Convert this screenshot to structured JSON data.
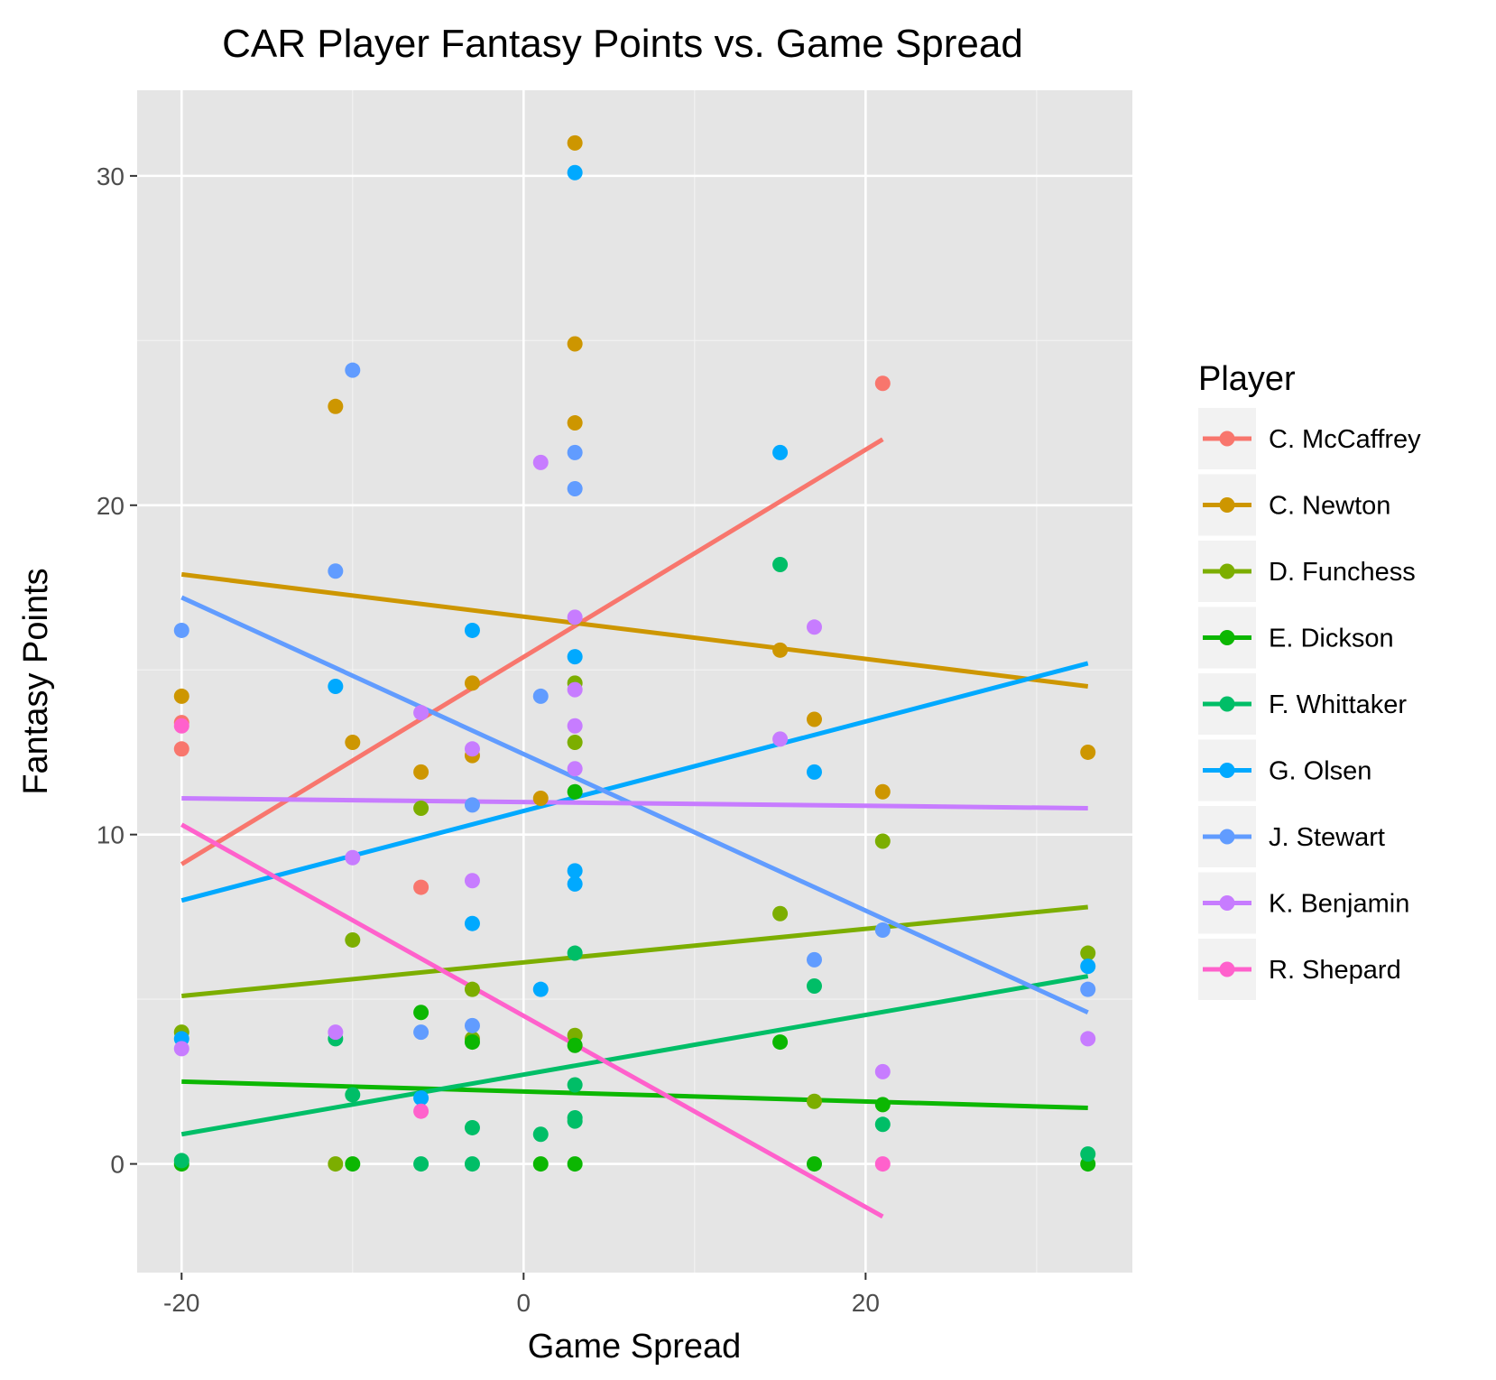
{
  "chart_data": {
    "type": "scatter",
    "title": "CAR Player Fantasy Points vs. Game Spread",
    "xlabel": "Game Spread",
    "ylabel": "Fantasy Points",
    "xlim": [
      -22.6,
      35.6
    ],
    "ylim": [
      -3.3,
      32.6
    ],
    "x_ticks": [
      -20,
      0,
      20
    ],
    "y_ticks": [
      0,
      10,
      20,
      30
    ],
    "x_minor": [
      -10,
      10,
      30
    ],
    "y_minor": [
      5,
      15,
      25
    ],
    "grid": true,
    "legend_title": "Player",
    "legend_position": "right",
    "background": "#e5e5e5",
    "series": [
      {
        "name": "C. McCaffrey",
        "color": "#f8766d",
        "points": [
          [
            -20,
            12.6
          ],
          [
            -20,
            13.4
          ],
          [
            -6,
            8.4
          ],
          [
            21,
            23.7
          ]
        ],
        "trend": [
          [
            -20,
            9.1
          ],
          [
            21,
            22.0
          ]
        ]
      },
      {
        "name": "C. Newton",
        "color": "#cd9600",
        "points": [
          [
            -20,
            14.2
          ],
          [
            -11,
            23.0
          ],
          [
            -10,
            12.8
          ],
          [
            -6,
            11.9
          ],
          [
            -3,
            14.6
          ],
          [
            -3,
            12.4
          ],
          [
            1,
            11.1
          ],
          [
            3,
            31.0
          ],
          [
            3,
            24.9
          ],
          [
            3,
            22.5
          ],
          [
            15,
            15.6
          ],
          [
            17,
            13.5
          ],
          [
            21,
            11.3
          ],
          [
            33,
            12.5
          ]
        ],
        "trend": [
          [
            -20,
            17.9
          ],
          [
            33,
            14.5
          ]
        ]
      },
      {
        "name": "D. Funchess",
        "color": "#7cae00",
        "points": [
          [
            -20,
            4.0
          ],
          [
            -11,
            0.0
          ],
          [
            -10,
            6.8
          ],
          [
            -6,
            10.8
          ],
          [
            -3,
            5.3
          ],
          [
            -3,
            3.8
          ],
          [
            3,
            14.6
          ],
          [
            3,
            12.8
          ],
          [
            3,
            3.9
          ],
          [
            15,
            7.6
          ],
          [
            17,
            1.9
          ],
          [
            21,
            9.8
          ],
          [
            33,
            6.4
          ]
        ],
        "trend": [
          [
            -20,
            5.1
          ],
          [
            33,
            7.8
          ]
        ]
      },
      {
        "name": "E. Dickson",
        "color": "#0cb702",
        "points": [
          [
            -20,
            0.0
          ],
          [
            -10,
            0.0
          ],
          [
            -6,
            4.6
          ],
          [
            -3,
            3.7
          ],
          [
            1,
            0.0
          ],
          [
            3,
            11.3
          ],
          [
            3,
            3.6
          ],
          [
            3,
            0.0
          ],
          [
            15,
            3.7
          ],
          [
            17,
            0.0
          ],
          [
            21,
            1.8
          ],
          [
            33,
            0.0
          ]
        ],
        "trend": [
          [
            -20,
            2.5
          ],
          [
            33,
            1.7
          ]
        ]
      },
      {
        "name": "F. Whittaker",
        "color": "#00be67",
        "points": [
          [
            -20,
            0.1
          ],
          [
            -11,
            3.8
          ],
          [
            -10,
            2.1
          ],
          [
            -6,
            0.0
          ],
          [
            -3,
            1.1
          ],
          [
            -3,
            0.0
          ],
          [
            1,
            0.9
          ],
          [
            3,
            6.4
          ],
          [
            3,
            2.4
          ],
          [
            3,
            1.4
          ],
          [
            3,
            1.3
          ],
          [
            15,
            18.2
          ],
          [
            17,
            5.4
          ],
          [
            21,
            1.2
          ],
          [
            33,
            0.3
          ]
        ],
        "trend": [
          [
            -20,
            0.9
          ],
          [
            33,
            5.7
          ]
        ]
      },
      {
        "name": "G. Olsen",
        "color": "#00a9ff",
        "points": [
          [
            -20,
            3.8
          ],
          [
            -11,
            14.5
          ],
          [
            -6,
            2.0
          ],
          [
            -3,
            16.2
          ],
          [
            -3,
            7.3
          ],
          [
            1,
            5.3
          ],
          [
            3,
            30.1
          ],
          [
            3,
            15.4
          ],
          [
            3,
            8.9
          ],
          [
            3,
            8.5
          ],
          [
            15,
            21.6
          ],
          [
            17,
            11.9
          ],
          [
            33,
            6.0
          ]
        ],
        "trend": [
          [
            -20,
            8.0
          ],
          [
            33,
            15.2
          ]
        ]
      },
      {
        "name": "J. Stewart",
        "color": "#619cff",
        "points": [
          [
            -20,
            16.2
          ],
          [
            -11,
            18.0
          ],
          [
            -10,
            24.1
          ],
          [
            -6,
            4.0
          ],
          [
            -3,
            10.9
          ],
          [
            -3,
            4.2
          ],
          [
            1,
            14.2
          ],
          [
            3,
            21.6
          ],
          [
            3,
            20.5
          ],
          [
            17,
            6.2
          ],
          [
            21,
            7.1
          ],
          [
            33,
            5.3
          ]
        ],
        "trend": [
          [
            -20,
            17.2
          ],
          [
            33,
            4.6
          ]
        ]
      },
      {
        "name": "K. Benjamin",
        "color": "#c77cff",
        "points": [
          [
            -20,
            3.5
          ],
          [
            -11,
            4.0
          ],
          [
            -10,
            9.3
          ],
          [
            -6,
            13.7
          ],
          [
            -3,
            12.6
          ],
          [
            -3,
            8.6
          ],
          [
            1,
            21.3
          ],
          [
            3,
            16.6
          ],
          [
            3,
            14.4
          ],
          [
            3,
            13.3
          ],
          [
            3,
            12.0
          ],
          [
            15,
            12.9
          ],
          [
            17,
            16.3
          ],
          [
            21,
            2.8
          ],
          [
            33,
            3.8
          ]
        ],
        "trend": [
          [
            -20,
            11.1
          ],
          [
            33,
            10.8
          ]
        ]
      },
      {
        "name": "R. Shepard",
        "color": "#ff61cc",
        "points": [
          [
            -20,
            13.3
          ],
          [
            -6,
            1.6
          ],
          [
            21,
            0.0
          ]
        ],
        "trend": [
          [
            -20,
            10.3
          ],
          [
            21,
            -1.6
          ]
        ]
      }
    ]
  }
}
